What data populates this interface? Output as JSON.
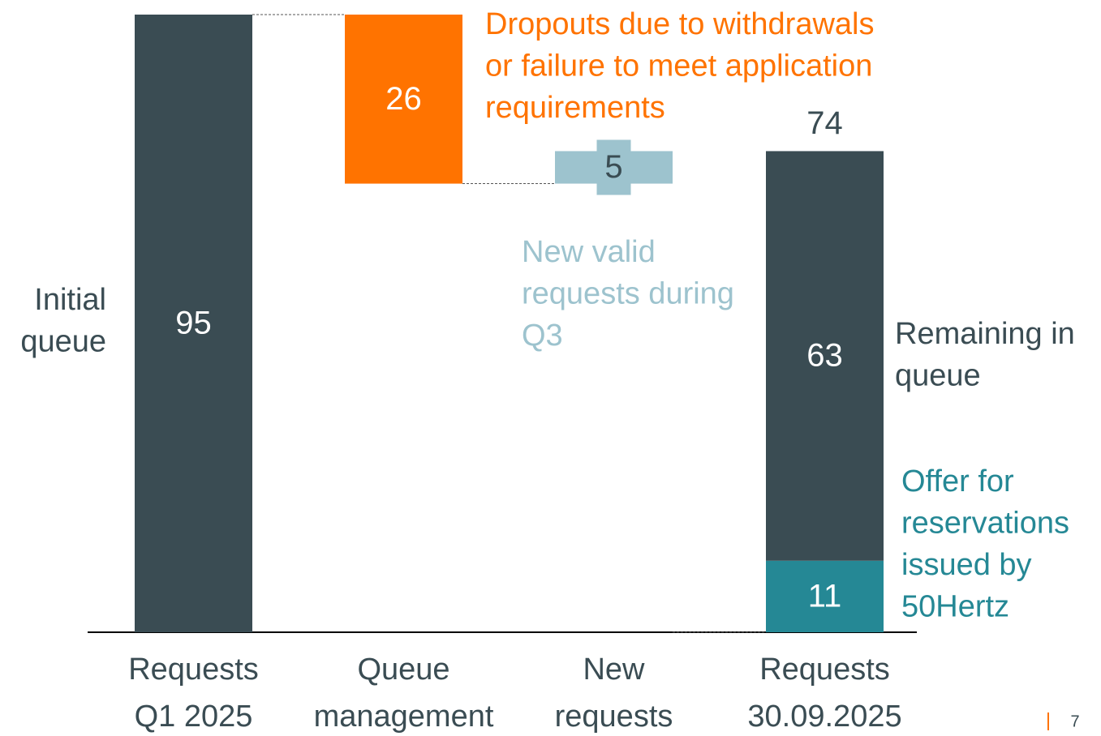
{
  "chart_data": {
    "type": "waterfall",
    "ylim": [
      0,
      95
    ],
    "bars": [
      {
        "category": [
          "Requests",
          "Q1 2025"
        ],
        "kind": "total",
        "segments": [
          {
            "value": 95,
            "color": "#3a4c53",
            "label_color": "#ffffff",
            "annotation": [
              "Initial",
              "queue"
            ],
            "annotation_color": "#3a4c53"
          }
        ]
      },
      {
        "category": [
          "Queue",
          "management"
        ],
        "kind": "decrease",
        "segments": [
          {
            "value": 26,
            "color": "#ff7300",
            "label_color": "#ffffff",
            "annotation": [
              "Dropouts due to withdrawals",
              "or failure to meet application",
              "requirements"
            ],
            "annotation_color": "#ff7300"
          }
        ]
      },
      {
        "category": [
          "New",
          "requests"
        ],
        "kind": "increase",
        "segments": [
          {
            "value": 5,
            "color": "#9dc3ce",
            "label_color": "#3a4c53",
            "annotation": [
              "New valid",
              "requests during",
              "Q3"
            ],
            "annotation_color": "#9dc3ce"
          }
        ]
      },
      {
        "category": [
          "Requests",
          "30.09.2025"
        ],
        "kind": "total",
        "total": 74,
        "segments": [
          {
            "value": 11,
            "color": "#258895",
            "label_color": "#ffffff",
            "annotation": [
              "Offer for",
              "reservations",
              "issued by",
              "50Hertz"
            ],
            "annotation_color": "#258895"
          },
          {
            "value": 63,
            "color": "#3a4c53",
            "label_color": "#ffffff",
            "annotation": [
              "Remaining in",
              "queue"
            ],
            "annotation_color": "#3a4c53"
          }
        ]
      }
    ]
  },
  "page_number": "7"
}
